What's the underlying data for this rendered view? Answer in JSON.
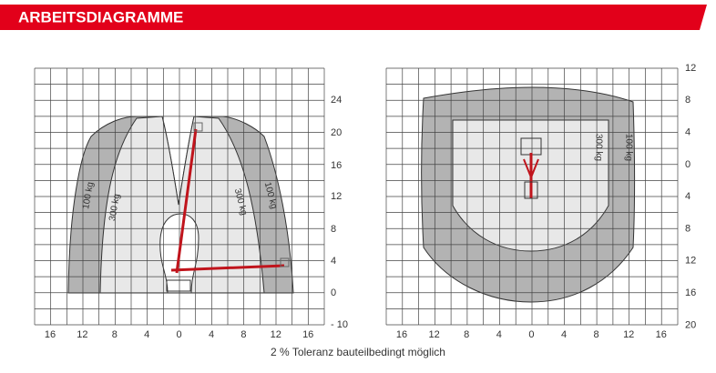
{
  "header": {
    "title": "ARBEITSDIAGRAMME"
  },
  "left_diagram": {
    "y_labels": [
      "24",
      "20",
      "16",
      "12",
      "8",
      "4",
      "0",
      "- 10"
    ],
    "x_labels": [
      "16",
      "12",
      "8",
      "4",
      "0",
      "4",
      "8",
      "12",
      "16"
    ],
    "load_labels": [
      "100 kg",
      "300 kg",
      "300 kg",
      "100 kg"
    ]
  },
  "right_diagram": {
    "y_labels": [
      "12",
      "8",
      "4",
      "0",
      "4",
      "8",
      "12",
      "16",
      "20"
    ],
    "x_labels": [
      "16",
      "12",
      "8",
      "4",
      "0",
      "4",
      "8",
      "12",
      "16"
    ],
    "load_labels": [
      "300 kg",
      "100 kg"
    ]
  },
  "footer": {
    "note": "2 % Toleranz bauteilbedingt möglich"
  }
}
